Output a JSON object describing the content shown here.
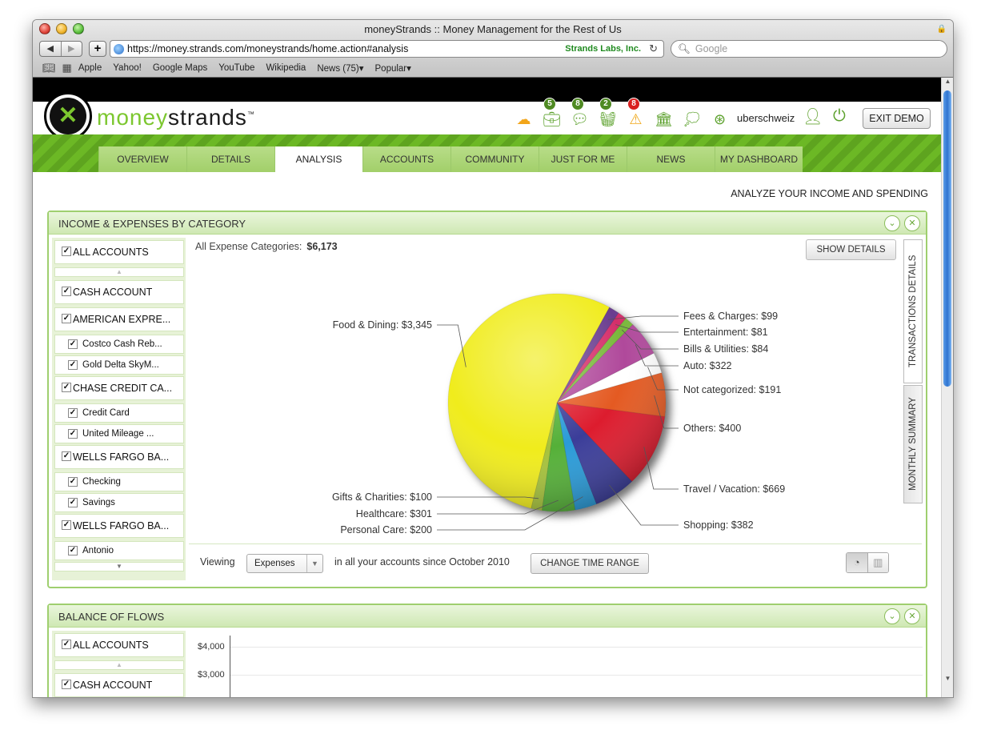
{
  "browser": {
    "title": "moneyStrands :: Money Management for the Rest of Us",
    "url": "https://money.strands.com/moneystrands/home.action#analysis",
    "cert_label": "Strands Labs, Inc.",
    "search_placeholder": "Google",
    "bookmarks": [
      "Apple",
      "Yahoo!",
      "Google Maps",
      "YouTube",
      "Wikipedia",
      "News (75)▾",
      "Popular▾"
    ]
  },
  "header": {
    "brand_green": "money",
    "brand_dark": "strands",
    "tm": "™",
    "icons": [
      {
        "name": "weather-icon",
        "badge": ""
      },
      {
        "name": "briefcase-icon",
        "badge": "5",
        "badge_color": "#4f8a23"
      },
      {
        "name": "chat-icon",
        "badge": "8",
        "badge_color": "#4f8a23"
      },
      {
        "name": "basket-icon",
        "badge": "2",
        "badge_color": "#4f8a23"
      },
      {
        "name": "alert-icon",
        "badge": "8",
        "badge_color": "#d92020"
      },
      {
        "name": "bank-icon",
        "badge": ""
      },
      {
        "name": "comments-icon",
        "badge": ""
      },
      {
        "name": "help-ring-icon",
        "badge": ""
      }
    ],
    "username": "uberschweiz",
    "exit_label": "EXIT DEMO"
  },
  "tabs": [
    "OVERVIEW",
    "DETAILS",
    "ANALYSIS",
    "ACCOUNTS",
    "COMMUNITY",
    "JUST FOR ME",
    "NEWS",
    "MY DASHBOARD"
  ],
  "active_tab": "ANALYSIS",
  "page_heading": "ANALYZE YOUR INCOME AND SPENDING",
  "panel1": {
    "title": "INCOME & EXPENSES BY CATEGORY",
    "accounts": [
      {
        "label": "ALL ACCOUNTS",
        "level": "top",
        "checked": true
      },
      {
        "label": "CASH ACCOUNT",
        "level": "top",
        "checked": true
      },
      {
        "label": "AMERICAN EXPRE...",
        "level": "top",
        "checked": true
      },
      {
        "label": "Costco Cash Reb...",
        "level": "sub",
        "checked": true
      },
      {
        "label": "Gold Delta SkyM...",
        "level": "sub",
        "checked": true
      },
      {
        "label": "CHASE CREDIT CA...",
        "level": "top",
        "checked": true
      },
      {
        "label": "Credit Card",
        "level": "sub",
        "checked": true
      },
      {
        "label": "United Mileage ...",
        "level": "sub",
        "checked": true
      },
      {
        "label": "WELLS FARGO BA...",
        "level": "top",
        "checked": true
      },
      {
        "label": "Checking",
        "level": "sub",
        "checked": true
      },
      {
        "label": "Savings",
        "level": "sub",
        "checked": true
      },
      {
        "label": "WELLS FARGO BA...",
        "level": "top",
        "checked": true
      },
      {
        "label": "Antonio",
        "level": "sub",
        "checked": true
      }
    ],
    "summary_label": "All Expense Categories:",
    "summary_value": "$6,173",
    "show_details": "SHOW DETAILS",
    "side_tabs": [
      "TRANSACTIONS DETAILS",
      "MONTHLY SUMMARY"
    ],
    "viewing_label": "Viewing",
    "viewing_value": "Expenses",
    "since_text": "in all your accounts since October 2010",
    "change_range": "CHANGE TIME RANGE"
  },
  "chart_data": {
    "type": "pie",
    "title": "",
    "slices": [
      {
        "label": "Fees & Charges: $99",
        "value": 99,
        "color": "#6a3d8f",
        "side": "right"
      },
      {
        "label": "Entertainment: $81",
        "value": 81,
        "color": "#d52d6a",
        "side": "right"
      },
      {
        "label": "Bills & Utilities: $84",
        "value": 84,
        "color": "#79b83a",
        "side": "right"
      },
      {
        "label": "Auto: $322",
        "value": 322,
        "color": "#b0489b",
        "side": "right"
      },
      {
        "label": "Not categorized: $191",
        "value": 191,
        "color": "#ffffff",
        "side": "right"
      },
      {
        "label": "Others: $400",
        "value": 400,
        "color": "#e45a22",
        "side": "right"
      },
      {
        "label": "Travel / Vacation: $669",
        "value": 669,
        "color": "#dd1c2e",
        "side": "right"
      },
      {
        "label": "Shopping: $382",
        "value": 382,
        "color": "#3b3d99",
        "side": "right"
      },
      {
        "label": "Personal Care: $200",
        "value": 200,
        "color": "#2b9bd8",
        "side": "left"
      },
      {
        "label": "Healthcare: $301",
        "value": 301,
        "color": "#54b038",
        "side": "left"
      },
      {
        "label": "Gifts & Charities: $100",
        "value": 100,
        "color": "#a6c23a",
        "side": "left"
      },
      {
        "label": "Food & Dining: $3,345",
        "value": 3345,
        "color": "#f0ec1e",
        "side": "left"
      }
    ],
    "total": "$6,173"
  },
  "panel2": {
    "title": "BALANCE OF FLOWS",
    "accounts": [
      {
        "label": "ALL ACCOUNTS",
        "level": "top",
        "checked": true
      },
      {
        "label": "CASH ACCOUNT",
        "level": "top",
        "checked": true
      }
    ],
    "y_ticks": [
      "$4,000",
      "$3,000"
    ]
  }
}
